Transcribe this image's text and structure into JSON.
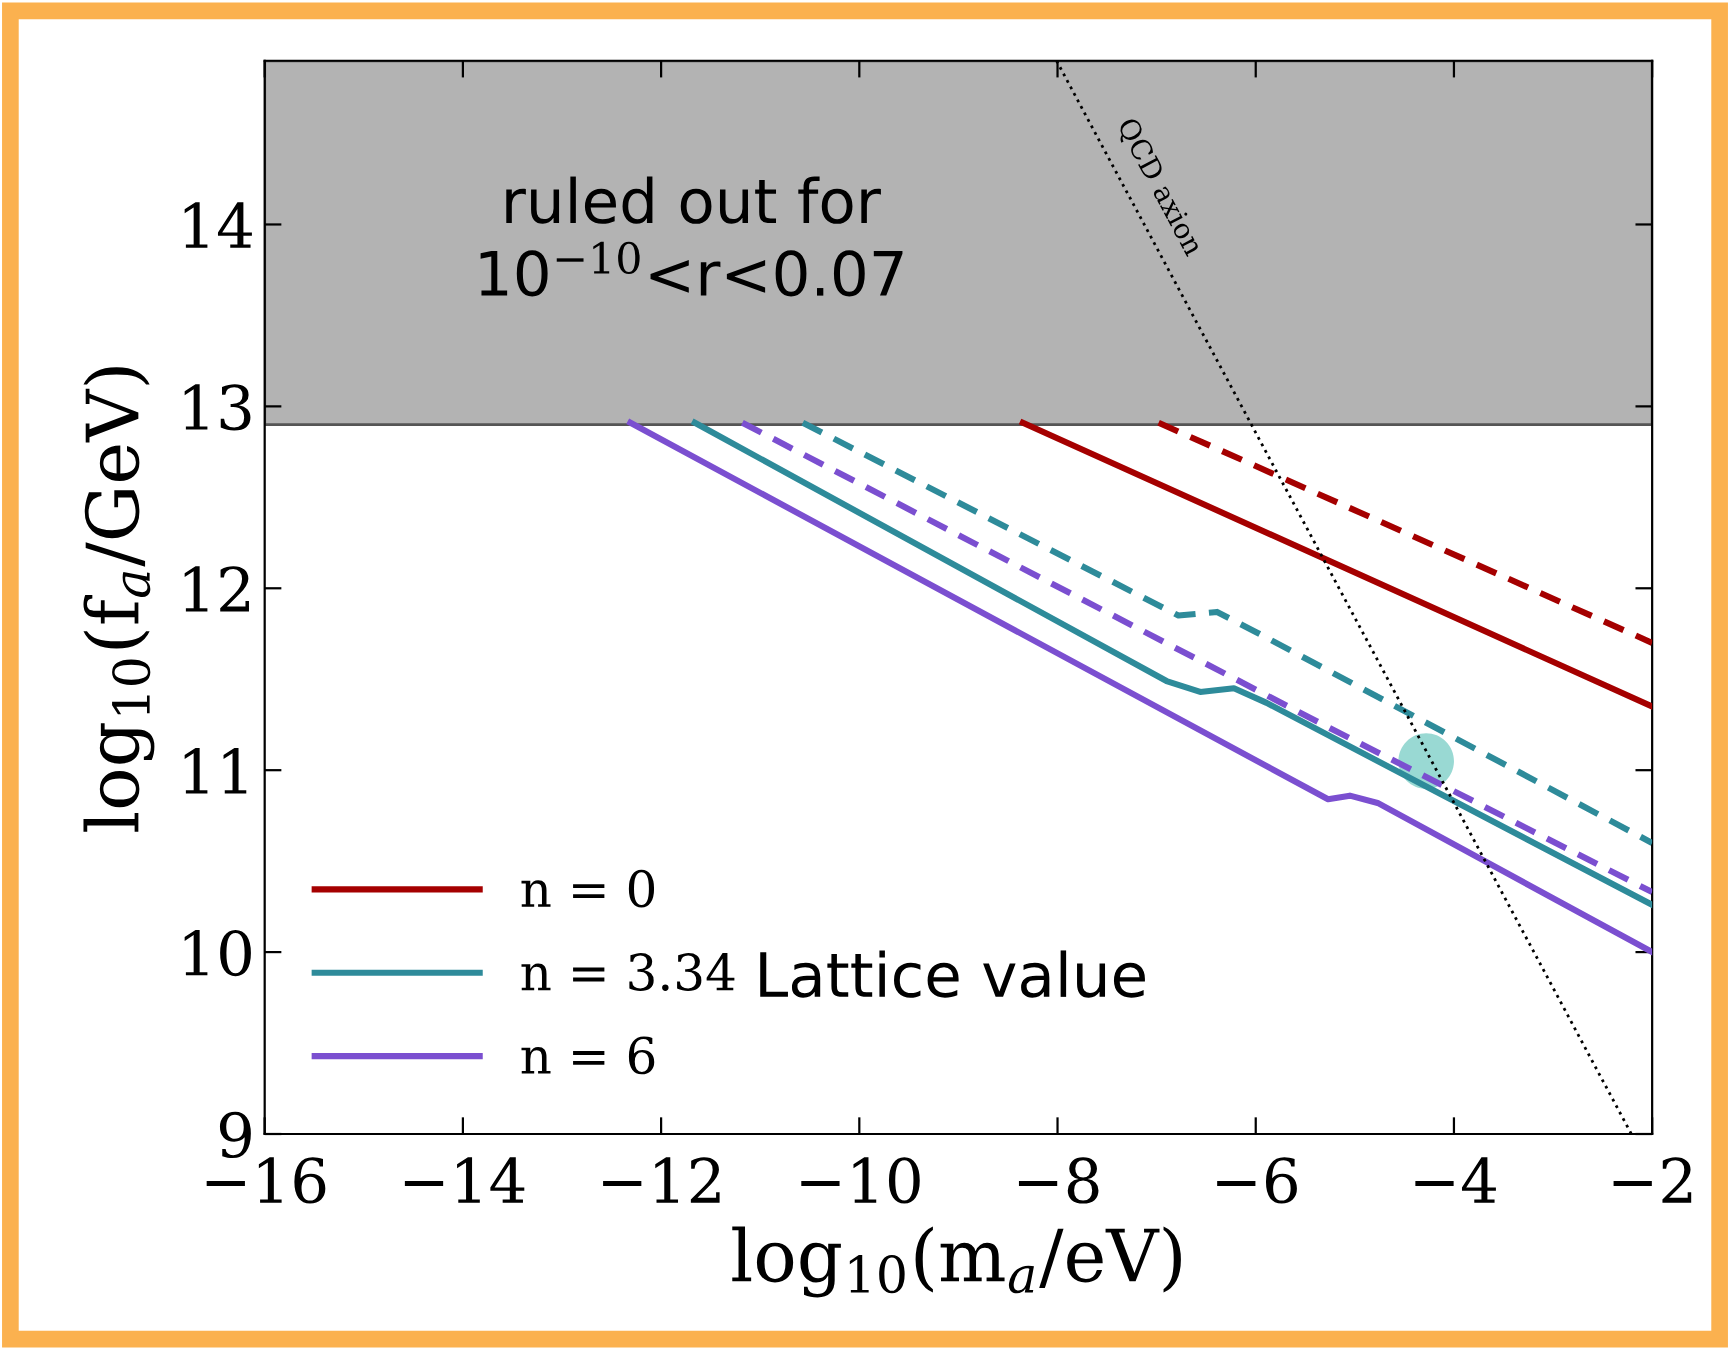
{
  "chart_data": {
    "type": "line",
    "xlabel": "log$_{10}$(m$_{a}$/eV)",
    "ylabel": "log$_{10}$(f$_{a}$/GeV)",
    "xlim": [
      -16,
      -2
    ],
    "ylim": [
      9,
      14.9
    ],
    "xticks": [
      {
        "value": -16,
        "label": "−16"
      },
      {
        "value": -14,
        "label": "−14"
      },
      {
        "value": -12,
        "label": "−12"
      },
      {
        "value": -10,
        "label": "−10"
      },
      {
        "value": -8,
        "label": "−8"
      },
      {
        "value": -6,
        "label": "−6"
      },
      {
        "value": -4,
        "label": "−4"
      },
      {
        "value": -2,
        "label": "−2"
      }
    ],
    "yticks": [
      9,
      10,
      11,
      12,
      13,
      14
    ],
    "grid": false,
    "legend": "bottom left",
    "line_style": "solid",
    "marker": "none",
    "bands": [
      {
        "axis": "y",
        "from": 12.9,
        "to": 14.9,
        "label": "ruled out for\n10$^{−10}$<r<0.07",
        "color": "#b3b3b3"
      }
    ],
    "annotations": [
      "Lattice value"
    ],
    "series": [
      {
        "name": "n = 0",
        "color": "#a50000",
        "x": [
          -8.35,
          -2
        ],
        "values": [
          12.91,
          11.35
        ]
      },
      {
        "name": "n = 3.34",
        "color": "#2e8b9a",
        "x": [
          -11.66,
          -6.9,
          -6.56,
          -6.22,
          -5.89,
          -2
        ],
        "values": [
          12.91,
          11.49,
          11.43,
          11.45,
          11.37,
          10.26
        ]
      },
      {
        "name": "n = 6",
        "color": "#7b4fd0",
        "x": [
          -12.31,
          -5.27,
          -5.05,
          -4.77,
          -2
        ],
        "values": [
          12.91,
          10.84,
          10.86,
          10.82,
          10.0
        ]
      },
      {
        "color": "#a50000",
        "line_style": "dashed",
        "x": [
          -6.98,
          -2
        ],
        "values": [
          12.91,
          11.7
        ]
      },
      {
        "color": "#2e8b9a",
        "line_style": "dashed",
        "x": [
          -10.57,
          -6.78,
          -6.39,
          -6.0,
          -2
        ],
        "values": [
          12.91,
          11.85,
          11.87,
          11.76,
          10.6
        ]
      },
      {
        "color": "#7b4fd0",
        "line_style": "dashed",
        "x": [
          -11.18,
          -5.39,
          -2
        ],
        "values": [
          12.91,
          11.27,
          10.33
        ]
      },
      {
        "name": "QCD axion",
        "color": "#000000",
        "line_style": "dotted",
        "x": [
          -8.01,
          -2.21
        ],
        "values": [
          14.9,
          9.0
        ]
      },
      {
        "type": "scatter",
        "marker": "circle",
        "color": "#7fcfc8",
        "x": [
          -4.28
        ],
        "values": [
          11.05
        ]
      }
    ]
  }
}
